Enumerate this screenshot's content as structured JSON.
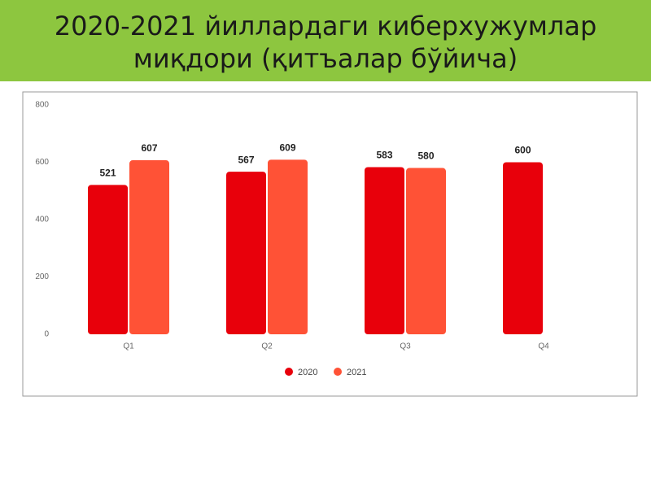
{
  "chart_data": {
    "type": "bar",
    "title": "2020-2021 йиллардаги киберхужумлар\nмиқдори (қитъалар бўйича)",
    "categories": [
      "Q1",
      "Q2",
      "Q3",
      "Q4"
    ],
    "series": [
      {
        "name": "2020",
        "color": "#e8000b",
        "values": [
          521,
          567,
          583,
          600
        ]
      },
      {
        "name": "2021",
        "color": "#ff5236",
        "values": [
          607,
          609,
          580,
          null
        ]
      }
    ],
    "ylim": [
      0,
      800
    ],
    "yticks": [
      0,
      200,
      400,
      600,
      800
    ],
    "grid": false,
    "legend": "bottom"
  }
}
